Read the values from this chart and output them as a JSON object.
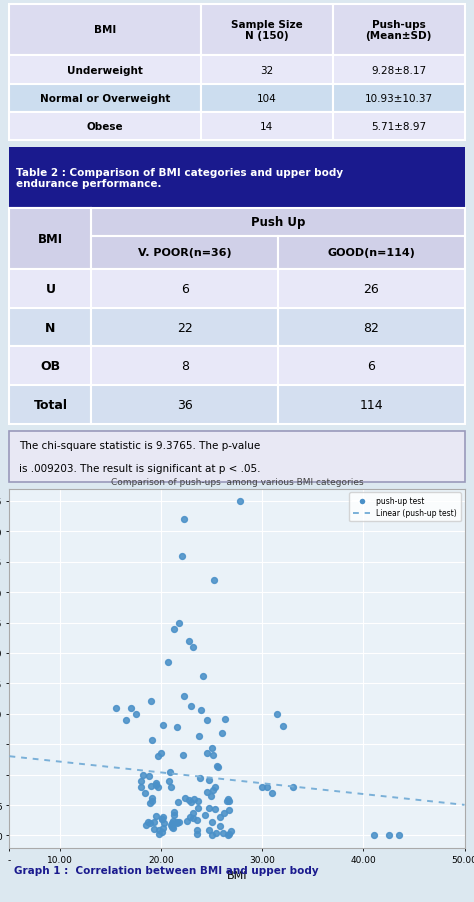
{
  "table1_header_bg": "#dcdcf0",
  "table1_row_bg1": "#e8e8f8",
  "table1_row_bg2": "#ccddef",
  "table2_title": "Table 2 : Comparison of BMI categories and upper body\nendurance performance.",
  "table2_title_bg": "#1a1a8e",
  "table2_title_text": "#ffffff",
  "table2_header_bg": "#d0d0e8",
  "table2_row_bg1": "#e8e8f8",
  "table2_row_bg2": "#d4dff0",
  "table2_cols": [
    "BMI",
    "V. POOR(n=36)",
    "GOOD(n=114)"
  ],
  "table2_rows": [
    [
      "U",
      "6",
      "26"
    ],
    [
      "N",
      "22",
      "82"
    ],
    [
      "OB",
      "8",
      "6"
    ],
    [
      "Total",
      "36",
      "114"
    ]
  ],
  "chi_text1": "The chi-square statistic is 9.3765. The p-value",
  "chi_text2": "is .009203. The result is significant at p < .05.",
  "chi_bg": "#e8e8f4",
  "scatter_dot_color": "#4a90c8",
  "scatter_dot_size": 18,
  "trendline_color": "#7ab0d8",
  "scatter_bg": "#eaf2f8",
  "graph_caption": "Graph 1 :  Correlation between BMI and upper body",
  "graph_caption_color": "#1a1a8e",
  "scatter_subtitle": "Comparison of push-ups  among various BMI categories",
  "fig_bg": "#dce8f0"
}
